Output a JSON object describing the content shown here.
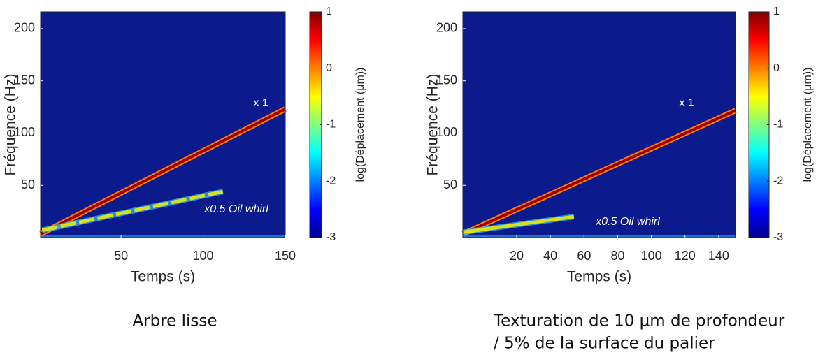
{
  "chart_data": [
    {
      "type": "spectrogram",
      "xlabel": "Temps (s)",
      "ylabel": "Fréquence (Hz)",
      "colorbar_label": "log(Déplacement (μm))",
      "xlim": [
        1,
        150
      ],
      "xticks": [
        50,
        100,
        150
      ],
      "ylim": [
        0,
        216
      ],
      "yticks": [
        50,
        100,
        150,
        200
      ],
      "clim": [
        -3,
        1
      ],
      "cticks": [
        -3,
        -2,
        -1,
        0,
        1
      ],
      "background": "#0b1a8c",
      "lines": [
        {
          "x": [
            1,
            150
          ],
          "values": [
            3.4,
            123
          ],
          "color": "#9a0000"
        },
        {
          "x": [
            2,
            112
          ],
          "values": [
            7,
            44
          ],
          "color": "#d8e020"
        }
      ],
      "annotations": [
        "x 1",
        "x0.5 Oil whirl"
      ],
      "caption": [
        "Arbre lisse"
      ]
    },
    {
      "type": "spectrogram",
      "xlabel": "Temps (s)",
      "ylabel": "Fréquence (Hz)",
      "colorbar_label": "log(Déplacement (μm))",
      "xlim": [
        -12,
        150
      ],
      "xticks": [
        20,
        40,
        60,
        80,
        100,
        120,
        140
      ],
      "ylim": [
        0,
        216
      ],
      "yticks": [
        50,
        100,
        150,
        200
      ],
      "clim": [
        -3,
        1
      ],
      "cticks": [
        -3,
        -2,
        -1,
        0,
        1
      ],
      "background": "#0b1a8c",
      "lines": [
        {
          "x": [
            -12,
            150
          ],
          "values": [
            3.4,
            121.6
          ],
          "color": "#9a0000"
        },
        {
          "x": [
            -12,
            54
          ],
          "values": [
            5,
            20
          ],
          "color": "#d8e020"
        }
      ],
      "annotations": [
        "x 1",
        "x0.5 Oil whirl"
      ],
      "caption": [
        "Texturation de 10 µm de profondeur",
        " / 5% de la surface du palier"
      ]
    }
  ]
}
